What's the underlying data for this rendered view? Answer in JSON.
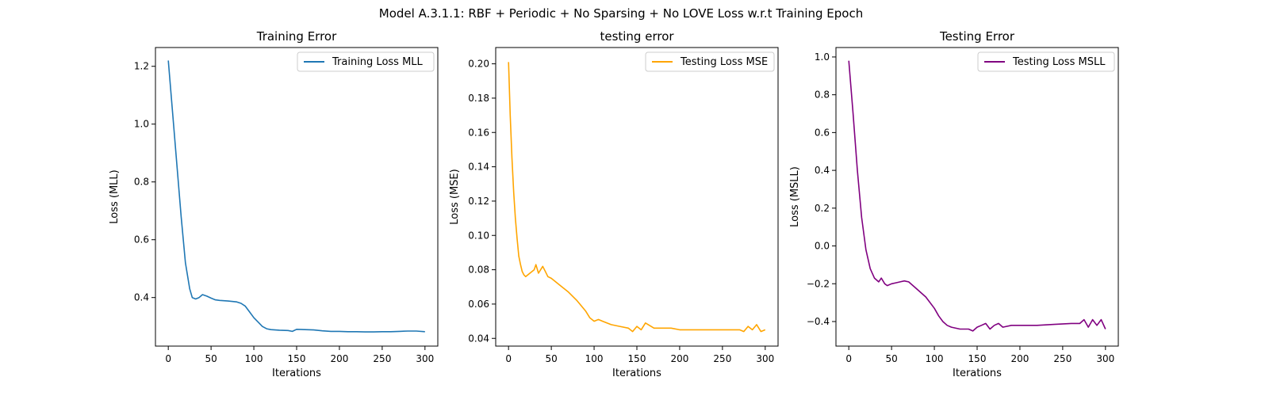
{
  "figure": {
    "suptitle": "Model A.3.1.1: RBF + Periodic + No Sparsing + No LOVE Loss w.r.t Training Epoch"
  },
  "chart_data": [
    {
      "type": "line",
      "title": "Training Error",
      "xlabel": "Iterations",
      "ylabel": "Loss (MLL)",
      "xlim": [
        -15,
        315
      ],
      "ylim": [
        0.232,
        1.265
      ],
      "xticks": [
        0,
        50,
        100,
        150,
        200,
        250,
        300
      ],
      "yticks": [
        0.4,
        0.6,
        0.8,
        1.0,
        1.2
      ],
      "ytick_labels": [
        "0.4",
        "0.6",
        "0.8",
        "1.0",
        "1.2"
      ],
      "legend": "top-right",
      "series": [
        {
          "name": "Training Loss MLL",
          "color": "#1f77b4",
          "x": [
            0,
            5,
            10,
            15,
            20,
            25,
            28,
            32,
            36,
            40,
            45,
            50,
            55,
            60,
            70,
            80,
            85,
            90,
            95,
            100,
            105,
            110,
            115,
            120,
            130,
            140,
            145,
            150,
            160,
            170,
            180,
            190,
            200,
            210,
            220,
            230,
            240,
            250,
            260,
            270,
            280,
            290,
            300
          ],
          "y": [
            1.22,
            1.04,
            0.86,
            0.68,
            0.52,
            0.43,
            0.4,
            0.395,
            0.4,
            0.41,
            0.405,
            0.398,
            0.392,
            0.39,
            0.388,
            0.385,
            0.38,
            0.37,
            0.35,
            0.33,
            0.315,
            0.3,
            0.292,
            0.289,
            0.287,
            0.286,
            0.283,
            0.29,
            0.289,
            0.288,
            0.285,
            0.283,
            0.283,
            0.282,
            0.282,
            0.281,
            0.281,
            0.282,
            0.282,
            0.283,
            0.284,
            0.284,
            0.282
          ]
        }
      ]
    },
    {
      "type": "line",
      "title": "testing error",
      "xlabel": "Iterations",
      "ylabel": "Loss (MSE)",
      "xlim": [
        -15,
        315
      ],
      "ylim": [
        0.0355,
        0.2095
      ],
      "xticks": [
        0,
        50,
        100,
        150,
        200,
        250,
        300
      ],
      "yticks": [
        0.04,
        0.06,
        0.08,
        0.1,
        0.12,
        0.14,
        0.16,
        0.18,
        0.2
      ],
      "ytick_labels": [
        "0.04",
        "0.06",
        "0.08",
        "0.10",
        "0.12",
        "0.14",
        "0.16",
        "0.18",
        "0.20"
      ],
      "legend": "top-right",
      "series": [
        {
          "name": "Testing Loss MSE",
          "color": "#ffa500",
          "x": [
            0,
            2,
            4,
            6,
            8,
            10,
            12,
            14,
            16,
            18,
            20,
            25,
            30,
            32,
            35,
            40,
            43,
            46,
            50,
            55,
            60,
            70,
            80,
            90,
            95,
            100,
            105,
            110,
            120,
            130,
            140,
            145,
            150,
            155,
            160,
            170,
            180,
            190,
            200,
            220,
            240,
            260,
            270,
            275,
            280,
            285,
            290,
            295,
            300
          ],
          "y": [
            0.201,
            0.17,
            0.145,
            0.125,
            0.11,
            0.098,
            0.088,
            0.083,
            0.079,
            0.077,
            0.076,
            0.078,
            0.08,
            0.083,
            0.078,
            0.082,
            0.079,
            0.076,
            0.075,
            0.073,
            0.071,
            0.067,
            0.062,
            0.056,
            0.052,
            0.05,
            0.051,
            0.05,
            0.048,
            0.047,
            0.046,
            0.044,
            0.047,
            0.045,
            0.049,
            0.046,
            0.046,
            0.046,
            0.045,
            0.045,
            0.045,
            0.045,
            0.045,
            0.044,
            0.047,
            0.045,
            0.048,
            0.044,
            0.045
          ]
        }
      ]
    },
    {
      "type": "line",
      "title": "Testing Error",
      "xlabel": "Iterations",
      "ylabel": "Loss (MSLL)",
      "xlim": [
        -15,
        315
      ],
      "ylim": [
        -0.53,
        1.05
      ],
      "xticks": [
        0,
        50,
        100,
        150,
        200,
        250,
        300
      ],
      "yticks": [
        -0.4,
        -0.2,
        0.0,
        0.2,
        0.4,
        0.6,
        0.8,
        1.0
      ],
      "ytick_labels": [
        "−0.4",
        "−0.2",
        "0.0",
        "0.2",
        "0.4",
        "0.6",
        "0.8",
        "1.0"
      ],
      "legend": "top-right",
      "series": [
        {
          "name": "Testing Loss MSLL",
          "color": "#800080",
          "x": [
            0,
            5,
            10,
            15,
            20,
            25,
            30,
            35,
            38,
            42,
            45,
            50,
            55,
            60,
            65,
            70,
            75,
            80,
            90,
            100,
            105,
            110,
            115,
            120,
            130,
            140,
            145,
            150,
            155,
            160,
            165,
            170,
            175,
            180,
            190,
            200,
            220,
            240,
            260,
            270,
            275,
            280,
            285,
            290,
            295,
            300
          ],
          "y": [
            0.98,
            0.7,
            0.4,
            0.15,
            -0.02,
            -0.12,
            -0.17,
            -0.19,
            -0.17,
            -0.2,
            -0.21,
            -0.2,
            -0.195,
            -0.19,
            -0.185,
            -0.19,
            -0.21,
            -0.23,
            -0.27,
            -0.33,
            -0.37,
            -0.4,
            -0.42,
            -0.43,
            -0.44,
            -0.44,
            -0.45,
            -0.43,
            -0.42,
            -0.41,
            -0.44,
            -0.42,
            -0.41,
            -0.43,
            -0.42,
            -0.42,
            -0.42,
            -0.415,
            -0.41,
            -0.41,
            -0.39,
            -0.43,
            -0.39,
            -0.42,
            -0.39,
            -0.44
          ]
        }
      ]
    }
  ]
}
